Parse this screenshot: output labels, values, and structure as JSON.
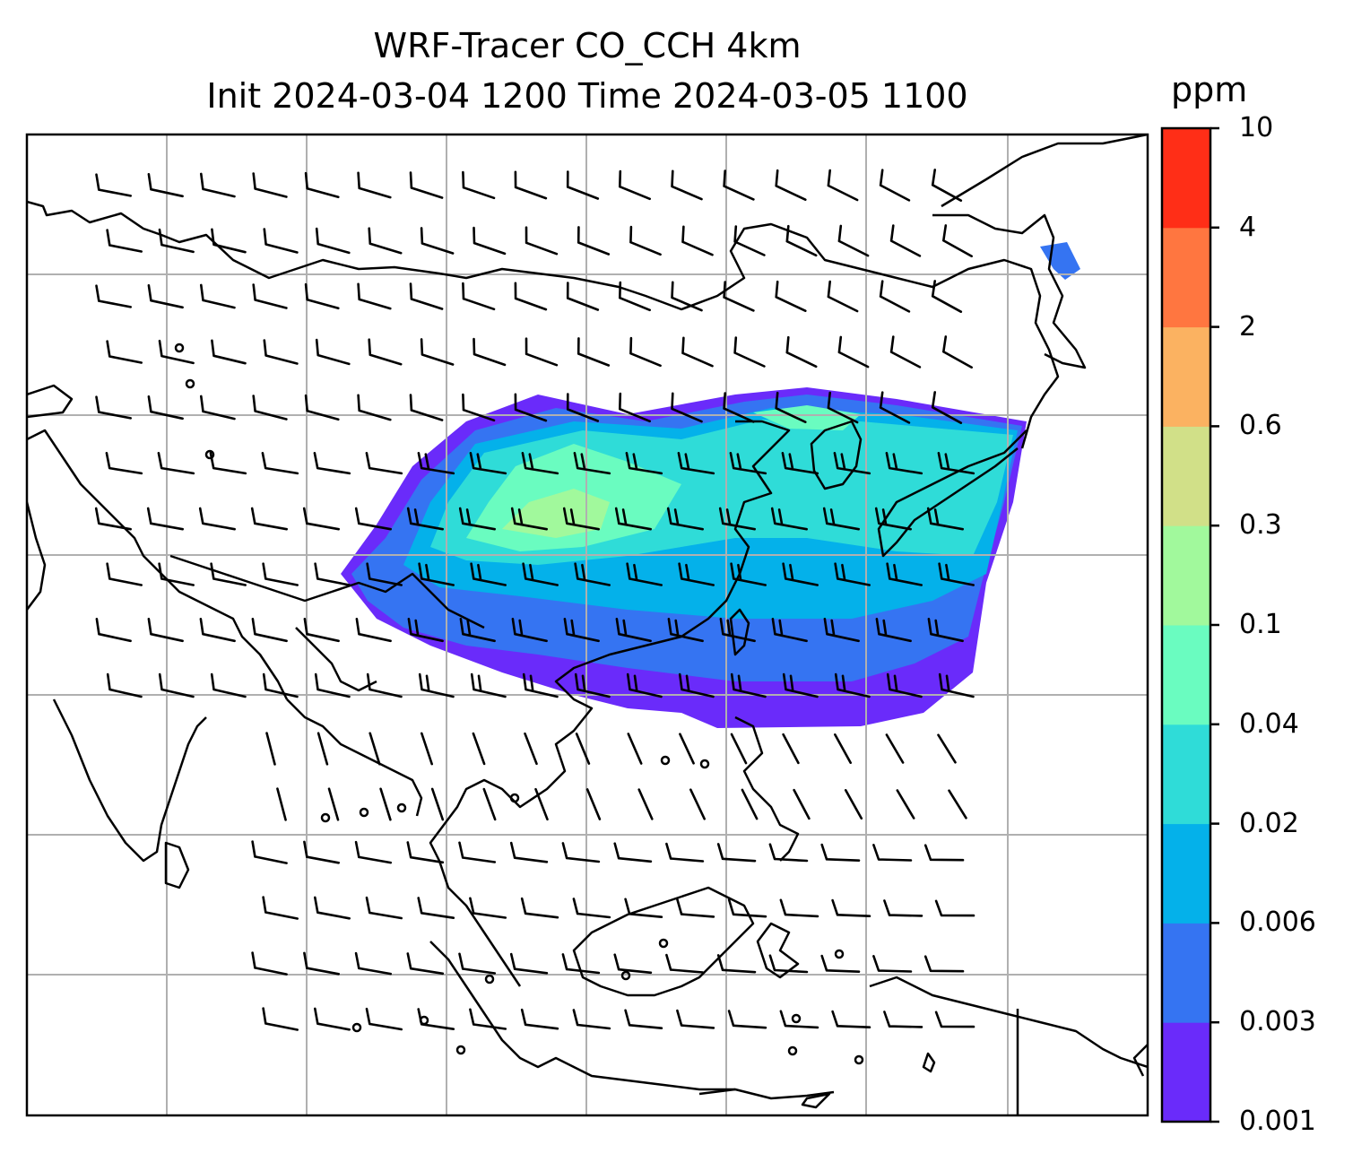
{
  "title_line1": "WRF-Tracer CO_CCH 4km",
  "title_line2": "Init 2024-03-04 1200 Time 2024-03-05 1100",
  "colorbar": {
    "unit": "ppm",
    "levels": [
      "0.001",
      "0.003",
      "0.006",
      "0.02",
      "0.04",
      "0.1",
      "0.3",
      "0.6",
      "2",
      "4",
      "10"
    ],
    "colors": [
      "#6a2bfa",
      "#3574f2",
      "#04b1ea",
      "#2fdcd8",
      "#6afcc0",
      "#a1f99c",
      "#d1e088",
      "#fbb261",
      "#ff7640",
      "#ff2e17"
    ]
  },
  "map": {
    "gridlines": true,
    "field": "CO_CCH tracer concentration",
    "wind_barbs": true
  }
}
